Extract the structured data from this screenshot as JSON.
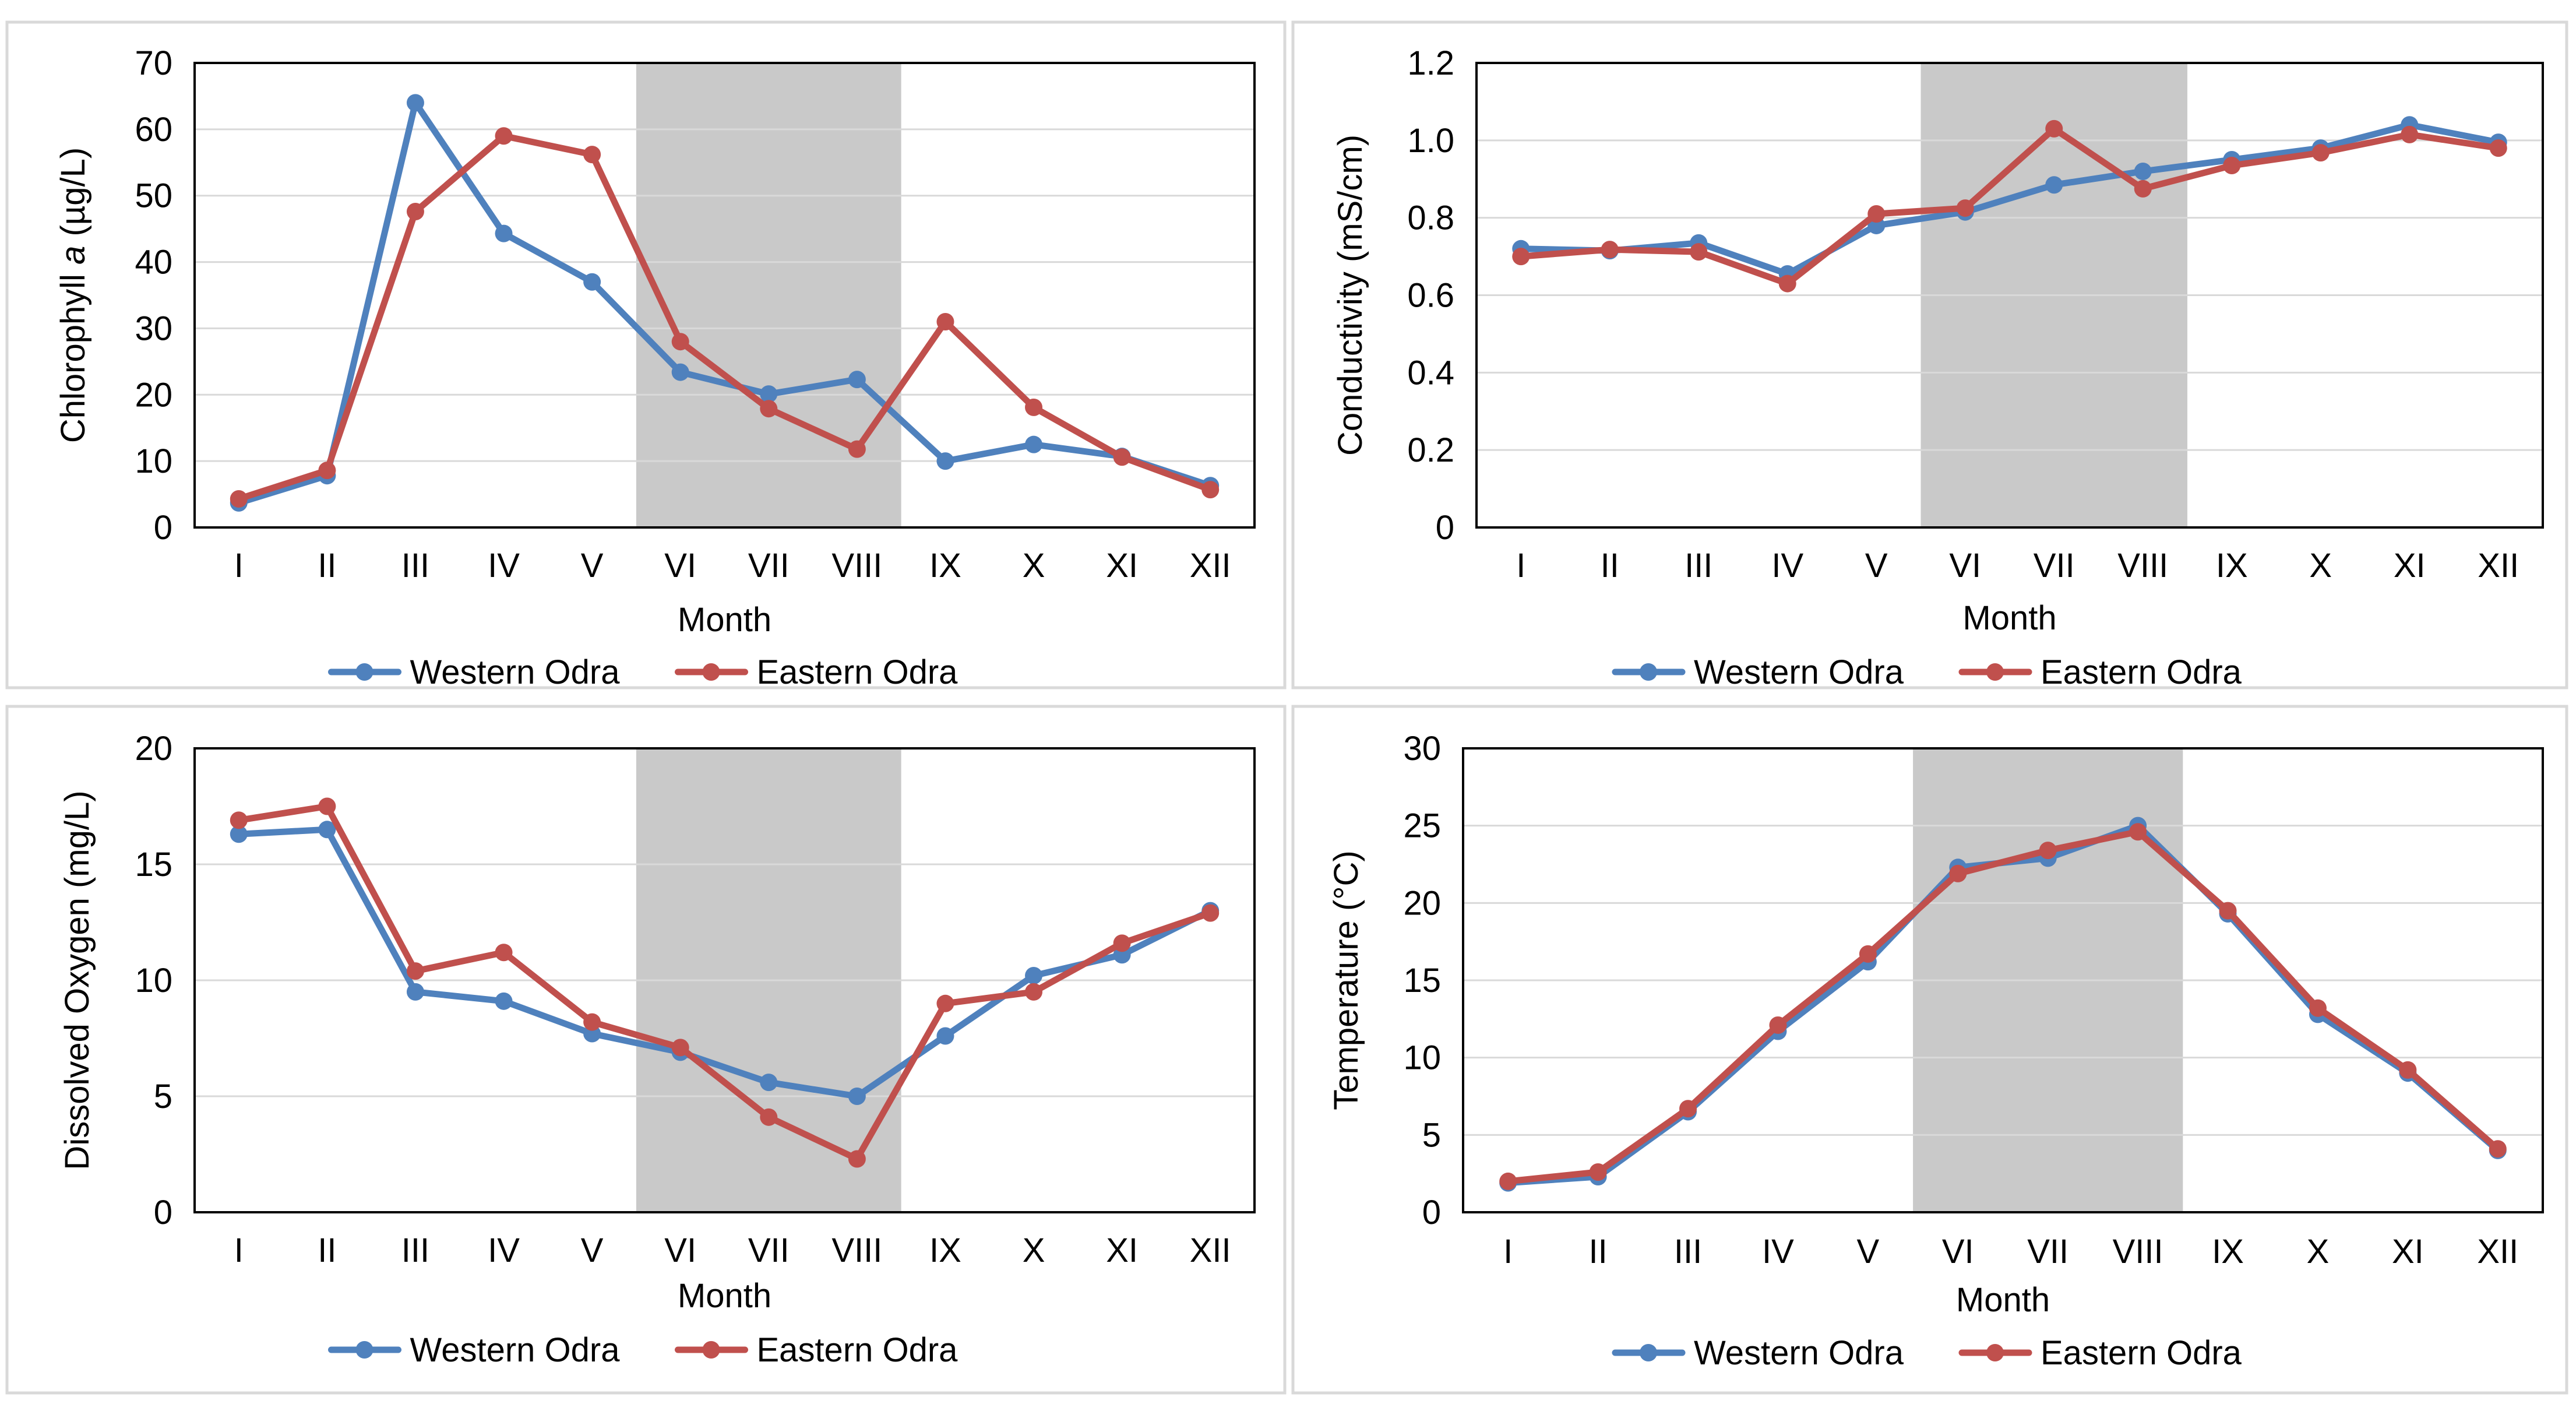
{
  "chart_data": [
    {
      "type": "line",
      "title": "",
      "xlabel": "Month",
      "ylabel": "Chlorophyll a (µg/L)",
      "ylabel_parts": [
        "Chlorophyll ",
        "a",
        " (µg/L)"
      ],
      "categories": [
        "I",
        "II",
        "III",
        "IV",
        "V",
        "VI",
        "VII",
        "VIII",
        "IX",
        "X",
        "XI",
        "XII"
      ],
      "ylim": [
        0,
        70
      ],
      "yticks": [
        "0",
        "10",
        "20",
        "30",
        "40",
        "50",
        "60",
        "70"
      ],
      "shaded_months": [
        "VI",
        "VII",
        "VIII"
      ],
      "series": [
        {
          "name": "Western Odra",
          "color": "#4f81bd",
          "values": [
            3.7,
            7.8,
            64.0,
            44.3,
            37.0,
            23.4,
            20.1,
            22.3,
            10.0,
            12.5,
            10.7,
            6.3
          ]
        },
        {
          "name": "Eastern Odra",
          "color": "#c0504d",
          "values": [
            4.3,
            8.6,
            47.6,
            59.0,
            56.2,
            28.0,
            17.9,
            11.8,
            31.0,
            18.1,
            10.6,
            5.7
          ]
        }
      ]
    },
    {
      "type": "line",
      "title": "",
      "xlabel": "Month",
      "ylabel": "Conductivity (mS/cm)",
      "categories": [
        "I",
        "II",
        "III",
        "IV",
        "V",
        "VI",
        "VII",
        "VIII",
        "IX",
        "X",
        "XI",
        "XII"
      ],
      "ylim": [
        0,
        1.2
      ],
      "yticks": [
        "0",
        "0.2",
        "0.4",
        "0.6",
        "0.8",
        "1.0",
        "1.2"
      ],
      "shaded_months": [
        "VI",
        "VII",
        "VIII"
      ],
      "series": [
        {
          "name": "Western Odra",
          "color": "#4f81bd",
          "values": [
            0.72,
            0.715,
            0.735,
            0.655,
            0.78,
            0.815,
            0.885,
            0.92,
            0.95,
            0.98,
            1.04,
            0.995
          ]
        },
        {
          "name": "Eastern Odra",
          "color": "#c0504d",
          "values": [
            0.7,
            0.718,
            0.712,
            0.63,
            0.81,
            0.825,
            1.03,
            0.875,
            0.935,
            0.968,
            1.015,
            0.98
          ]
        }
      ]
    },
    {
      "type": "line",
      "title": "",
      "xlabel": "Month",
      "ylabel": "Dissolved Oxygen (mg/L)",
      "categories": [
        "I",
        "II",
        "III",
        "IV",
        "V",
        "VI",
        "VII",
        "VIII",
        "IX",
        "X",
        "XI",
        "XII"
      ],
      "ylim": [
        0,
        20
      ],
      "yticks": [
        "0",
        "5",
        "10",
        "15",
        "20"
      ],
      "shaded_months": [
        "VI",
        "VII",
        "VIII"
      ],
      "series": [
        {
          "name": "Western Odra",
          "color": "#4f81bd",
          "values": [
            16.3,
            16.5,
            9.5,
            9.1,
            7.7,
            6.9,
            5.6,
            5.0,
            7.6,
            10.2,
            11.1,
            13.0
          ]
        },
        {
          "name": "Eastern Odra",
          "color": "#c0504d",
          "values": [
            16.9,
            17.5,
            10.4,
            11.2,
            8.2,
            7.1,
            4.1,
            2.3,
            9.0,
            9.5,
            11.6,
            12.9
          ]
        }
      ]
    },
    {
      "type": "line",
      "title": "",
      "xlabel": "Month",
      "ylabel": "Temperature (°C)",
      "categories": [
        "I",
        "II",
        "III",
        "IV",
        "V",
        "VI",
        "VII",
        "VIII",
        "IX",
        "X",
        "XI",
        "XII"
      ],
      "ylim": [
        0,
        30
      ],
      "yticks": [
        "0",
        "5",
        "10",
        "15",
        "20",
        "25",
        "30"
      ],
      "shaded_months": [
        "VI",
        "VII",
        "VIII"
      ],
      "series": [
        {
          "name": "Western Odra",
          "color": "#4f81bd",
          "values": [
            1.9,
            2.3,
            6.5,
            11.7,
            16.2,
            22.3,
            22.9,
            25.0,
            19.3,
            12.8,
            9.0,
            4.0
          ]
        },
        {
          "name": "Eastern Odra",
          "color": "#c0504d",
          "values": [
            2.0,
            2.6,
            6.7,
            12.1,
            16.7,
            21.9,
            23.4,
            24.6,
            19.5,
            13.2,
            9.2,
            4.1
          ]
        }
      ]
    }
  ]
}
